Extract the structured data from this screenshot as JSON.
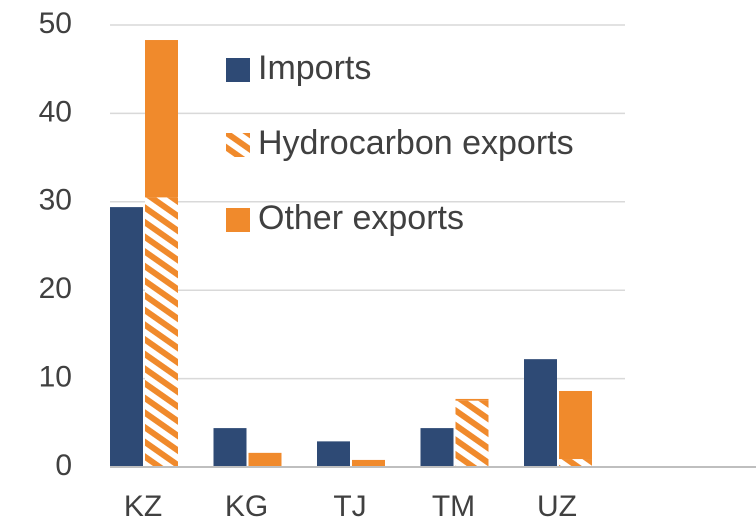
{
  "chart_data": {
    "type": "grouped_stacked_bar",
    "categories": [
      "KZ",
      "KG",
      "TJ",
      "TM",
      "UZ"
    ],
    "series": [
      {
        "name": "Imports",
        "color": "#2e4a75",
        "stack": "a",
        "values": [
          29.4,
          4.4,
          2.9,
          4.4,
          12.2
        ]
      },
      {
        "name": "Hydrocarbon exports",
        "color": "#f08a2c",
        "stack": "b",
        "pattern": "hatch",
        "values": [
          30.5,
          0,
          0,
          7.5,
          0.9
        ]
      },
      {
        "name": "Other exports",
        "color": "#f08a2c",
        "stack": "b",
        "values": [
          17.8,
          1.6,
          0.8,
          0.2,
          7.7
        ]
      }
    ],
    "ylim": [
      0,
      50
    ],
    "yticks": [
      0,
      10,
      20,
      30,
      40,
      50
    ],
    "grid": true
  }
}
